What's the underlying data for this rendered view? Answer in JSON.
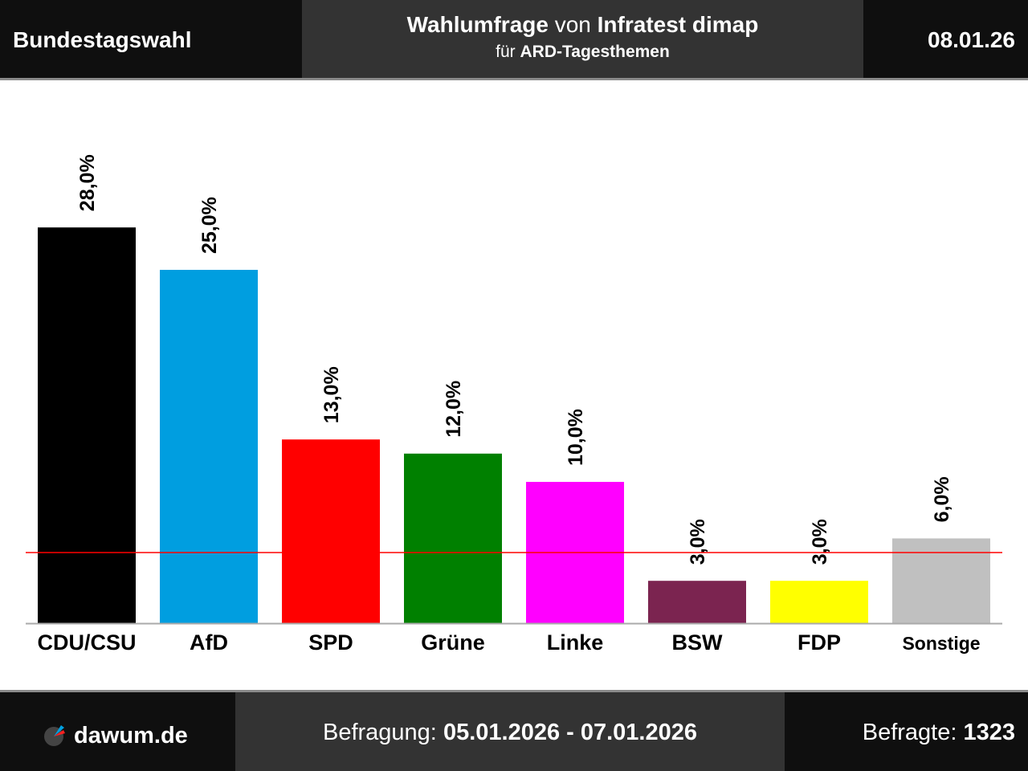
{
  "header": {
    "left": "Bundestagswahl",
    "title_main": "Wahlumfrage",
    "title_von": "von",
    "title_institute": "Infratest dimap",
    "subtitle_fuer": "für",
    "subtitle_client": "ARD-Tagesthemen",
    "date": "08.01.26"
  },
  "footer": {
    "logo": "dawum.de",
    "period_label": "Befragung:",
    "period": "05.01.2026 - 07.01.2026",
    "respondents_label": "Befragte:",
    "respondents": "1323"
  },
  "chart_data": {
    "type": "bar",
    "categories": [
      "CDU/CSU",
      "AfD",
      "SPD",
      "Grüne",
      "Linke",
      "BSW",
      "FDP",
      "Sonstige"
    ],
    "values": [
      28.0,
      25.0,
      13.0,
      12.0,
      10.0,
      3.0,
      3.0,
      6.0
    ],
    "labels": [
      "28,0%",
      "25,0%",
      "13,0%",
      "12,0%",
      "10,0%",
      "3,0%",
      "3,0%",
      "6,0%"
    ],
    "colors": [
      "#000000",
      "#009ee0",
      "#ff0000",
      "#008000",
      "#ff00ff",
      "#7b2450",
      "#ffff00",
      "#c0c0c0"
    ],
    "threshold": 5,
    "threshold_color": "#ff0000",
    "ylim": [
      0,
      30
    ]
  }
}
